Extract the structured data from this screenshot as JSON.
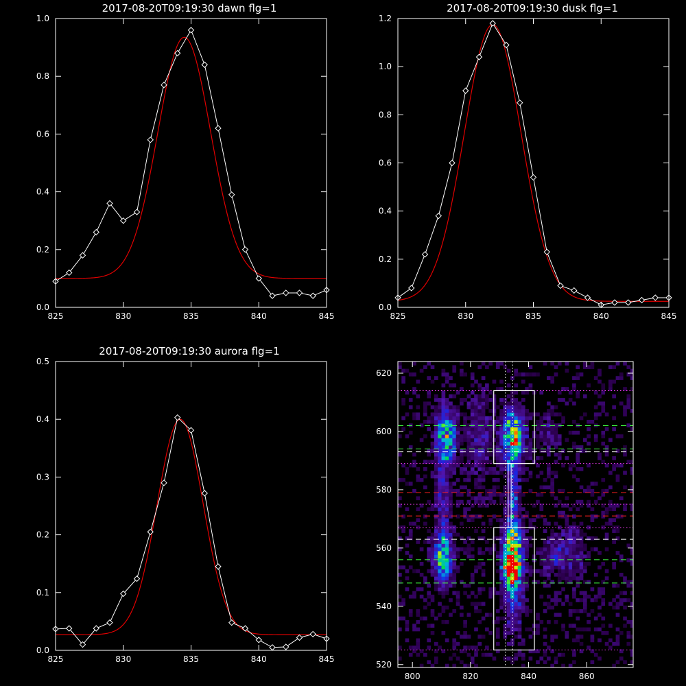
{
  "chart_data": [
    {
      "type": "line",
      "title": "2017-08-20T09:19:30 dawn flg=1",
      "xlim": [
        825,
        845
      ],
      "ylim": [
        0,
        1.0
      ],
      "xticks": [
        825,
        830,
        835,
        840,
        845
      ],
      "yticks": [
        0.0,
        0.2,
        0.4,
        0.6,
        0.8,
        1.0
      ],
      "ytick_labels": [
        "0.0",
        "0.2",
        "0.4",
        "0.6",
        "0.8",
        "1.0"
      ],
      "series": [
        {
          "style": "data",
          "color": "#ffffff",
          "x": [
            825,
            826,
            827,
            828,
            829,
            830,
            831,
            832,
            833,
            834,
            835,
            836,
            837,
            838,
            839,
            840,
            841,
            842,
            843,
            844,
            845
          ],
          "y": [
            0.09,
            0.12,
            0.18,
            0.26,
            0.36,
            0.3,
            0.33,
            0.58,
            0.77,
            0.88,
            0.96,
            0.84,
            0.62,
            0.39,
            0.2,
            0.1,
            0.04,
            0.05,
            0.05,
            0.04,
            0.06
          ]
        },
        {
          "style": "fit",
          "color": "#e00000",
          "gaussian": {
            "amplitude": 0.835,
            "center": 834.5,
            "sigma": 1.95,
            "offset": 0.1
          }
        }
      ]
    },
    {
      "type": "line",
      "title": "2017-08-20T09:19:30 dusk flg=1",
      "xlim": [
        825,
        845
      ],
      "ylim": [
        0,
        1.2
      ],
      "xticks": [
        825,
        830,
        835,
        840,
        845
      ],
      "yticks": [
        0.0,
        0.2,
        0.4,
        0.6,
        0.8,
        1.0,
        1.2
      ],
      "ytick_labels": [
        "0.0",
        "0.2",
        "0.4",
        "0.6",
        "0.8",
        "1.0",
        "1.2"
      ],
      "series": [
        {
          "style": "data",
          "color": "#ffffff",
          "x": [
            825,
            826,
            827,
            828,
            829,
            830,
            831,
            832,
            833,
            834,
            835,
            836,
            837,
            838,
            839,
            840,
            841,
            842,
            843,
            844,
            845
          ],
          "y": [
            0.04,
            0.08,
            0.22,
            0.38,
            0.6,
            0.9,
            1.04,
            1.18,
            1.09,
            0.85,
            0.54,
            0.23,
            0.09,
            0.07,
            0.04,
            0.01,
            0.02,
            0.02,
            0.03,
            0.04,
            0.04
          ]
        },
        {
          "style": "fit",
          "color": "#e00000",
          "gaussian": {
            "amplitude": 1.15,
            "center": 832.0,
            "sigma": 2.1,
            "offset": 0.025
          }
        }
      ]
    },
    {
      "type": "line",
      "title": "2017-08-20T09:19:30 aurora flg=1",
      "xlim": [
        825,
        845
      ],
      "ylim": [
        0,
        0.5
      ],
      "xticks": [
        825,
        830,
        835,
        840,
        845
      ],
      "yticks": [
        0.0,
        0.1,
        0.2,
        0.3,
        0.4,
        0.5
      ],
      "ytick_labels": [
        "0.0",
        "0.1",
        "0.2",
        "0.3",
        "0.4",
        "0.5"
      ],
      "series": [
        {
          "style": "data",
          "color": "#ffffff",
          "x": [
            825,
            826,
            827,
            828,
            829,
            830,
            831,
            832,
            833,
            834,
            835,
            836,
            837,
            838,
            839,
            840,
            841,
            842,
            843,
            844,
            845
          ],
          "y": [
            0.037,
            0.038,
            0.01,
            0.038,
            0.048,
            0.098,
            0.124,
            0.205,
            0.29,
            0.403,
            0.381,
            0.272,
            0.145,
            0.048,
            0.038,
            0.018,
            0.005,
            0.006,
            0.022,
            0.028,
            0.02
          ]
        },
        {
          "style": "fit",
          "color": "#e00000",
          "gaussian": {
            "amplitude": 0.373,
            "center": 834.2,
            "sigma": 1.7,
            "offset": 0.027
          }
        }
      ]
    },
    {
      "type": "heatmap",
      "title": "",
      "xlim": [
        795,
        876
      ],
      "ylim": [
        519,
        624
      ],
      "xticks": [
        800,
        820,
        840,
        860
      ],
      "yticks": [
        520,
        540,
        560,
        580,
        600,
        620
      ],
      "blobs": [
        {
          "x": 834,
          "y": 556,
          "sx": 2.2,
          "sy": 7,
          "amp": 1.0
        },
        {
          "x": 833,
          "y": 553,
          "sx": 1.5,
          "sy": 3,
          "amp": 0.5
        },
        {
          "x": 834,
          "y": 598,
          "sx": 2.5,
          "sy": 6,
          "amp": 0.7
        },
        {
          "x": 810,
          "y": 556,
          "sx": 2.2,
          "sy": 6,
          "amp": 0.55
        },
        {
          "x": 811,
          "y": 598,
          "sx": 2.5,
          "sy": 6,
          "amp": 0.5
        },
        {
          "x": 834,
          "y": 578,
          "sx": 1.4,
          "sy": 12,
          "amp": 0.35
        },
        {
          "x": 810,
          "y": 580,
          "sx": 2.0,
          "sy": 14,
          "amp": 0.22
        },
        {
          "x": 834,
          "y": 540,
          "sx": 2.5,
          "sy": 8,
          "amp": 0.22
        },
        {
          "x": 848,
          "y": 557,
          "sx": 3.0,
          "sy": 5,
          "amp": 0.2
        },
        {
          "x": 855,
          "y": 558,
          "sx": 3.0,
          "sy": 8,
          "amp": 0.15
        },
        {
          "x": 822,
          "y": 597,
          "sx": 3.5,
          "sy": 12,
          "amp": 0.16
        },
        {
          "x": 846,
          "y": 600,
          "sx": 3.0,
          "sy": 6,
          "amp": 0.12
        }
      ],
      "boxes": [
        {
          "x0": 828,
          "x1": 842,
          "y0": 589,
          "y1": 614,
          "color": "#ffffff"
        },
        {
          "x0": 828,
          "x1": 842,
          "y0": 525,
          "y1": 567,
          "color": "#ffffff"
        }
      ],
      "vlines_dotted": [
        {
          "x": 832,
          "color": "#ffffff"
        },
        {
          "x": 834.5,
          "color": "#ffffff"
        }
      ],
      "centerline": {
        "x0": 833,
        "x1": 834,
        "y0": 567,
        "y1": 589,
        "color": "#ffffff"
      },
      "hlines": [
        {
          "y": 614,
          "style": "dotted",
          "color": "#ff40ff"
        },
        {
          "y": 602,
          "style": "dashed",
          "color": "#40ff40"
        },
        {
          "y": 594,
          "style": "dashed",
          "color": "#40ff40"
        },
        {
          "y": 593,
          "style": "dashed",
          "color": "#ffffff"
        },
        {
          "y": 589,
          "style": "dotted",
          "color": "#ff40ff"
        },
        {
          "y": 579,
          "style": "dashed",
          "color": "#ff2020"
        },
        {
          "y": 575,
          "style": "dotted",
          "color": "#ff40ff"
        },
        {
          "y": 571,
          "style": "dashed",
          "color": "#ff2020"
        },
        {
          "y": 567,
          "style": "dotted",
          "color": "#ff40ff"
        },
        {
          "y": 563,
          "style": "dashed",
          "color": "#ffffff"
        },
        {
          "y": 556,
          "style": "dashed",
          "color": "#40ff40"
        },
        {
          "y": 548,
          "style": "dashed",
          "color": "#40ff40"
        },
        {
          "y": 525,
          "style": "dotted",
          "color": "#ff40ff"
        }
      ]
    }
  ]
}
